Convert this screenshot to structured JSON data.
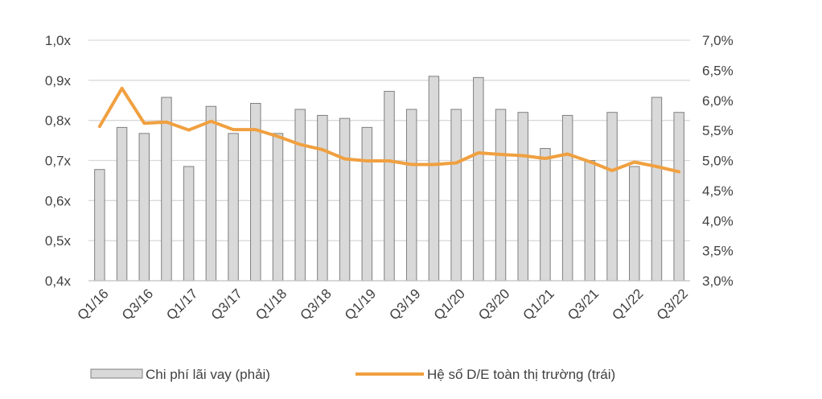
{
  "chart_data": {
    "type": "bar+line",
    "title": "",
    "categories": [
      "Q1/16",
      "Q2/16",
      "Q3/16",
      "Q4/16",
      "Q1/17",
      "Q2/17",
      "Q3/17",
      "Q4/17",
      "Q1/18",
      "Q2/18",
      "Q3/18",
      "Q4/18",
      "Q1/19",
      "Q2/19",
      "Q3/19",
      "Q4/19",
      "Q1/20",
      "Q2/20",
      "Q3/20",
      "Q4/20",
      "Q1/21",
      "Q2/21",
      "Q3/21",
      "Q4/21",
      "Q1/22",
      "Q2/22",
      "Q3/22"
    ],
    "x_tick_labels": [
      "Q1/16",
      "Q3/16",
      "Q1/17",
      "Q3/17",
      "Q1/18",
      "Q3/18",
      "Q1/19",
      "Q3/19",
      "Q1/20",
      "Q3/20",
      "Q1/21",
      "Q3/21",
      "Q1/22",
      "Q3/22"
    ],
    "left_axis": {
      "ticks": [
        "0,4x",
        "0,5x",
        "0,6x",
        "0,7x",
        "0,8x",
        "0,9x",
        "1,0x"
      ],
      "ylim": [
        0.4,
        1.0
      ]
    },
    "right_axis": {
      "ticks": [
        "3,0%",
        "3,5%",
        "4,0%",
        "4,5%",
        "5,0%",
        "5,5%",
        "6,0%",
        "6,5%",
        "7,0%"
      ],
      "ylim": [
        3.0,
        7.0
      ]
    },
    "series": [
      {
        "name": "Chi phí lãi vay (phải)",
        "kind": "bar",
        "axis": "right",
        "color": "#d9d9d9",
        "edge_color": "#7f7f7f",
        "values": [
          4.85,
          5.55,
          5.45,
          6.05,
          4.9,
          5.9,
          5.45,
          5.95,
          5.45,
          5.85,
          5.75,
          5.7,
          5.55,
          6.15,
          5.85,
          6.4,
          5.85,
          6.38,
          5.85,
          5.8,
          5.2,
          5.75,
          5.0,
          5.8,
          4.9,
          6.05,
          5.8
        ]
      },
      {
        "name": "Hệ số D/E toàn thị trường (trái)",
        "kind": "line",
        "axis": "left",
        "color": "#f0a040",
        "values": [
          0.785,
          0.88,
          0.793,
          0.796,
          0.776,
          0.798,
          0.777,
          0.777,
          0.76,
          0.74,
          0.727,
          0.704,
          0.699,
          0.699,
          0.69,
          0.69,
          0.694,
          0.719,
          0.715,
          0.712,
          0.705,
          0.716,
          0.697,
          0.675,
          0.696,
          0.685,
          0.672
        ]
      }
    ],
    "grid": true,
    "legend_position": "bottom"
  }
}
